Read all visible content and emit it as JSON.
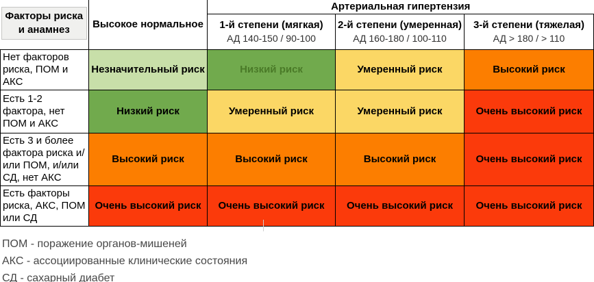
{
  "colors": {
    "light_green": "#C8DFA9",
    "green": "#71AA4D",
    "dark_green_text": "#4A7A28",
    "yellow": "#FBD765",
    "orange": "#FC7E00",
    "red": "#FB3A0B",
    "header_gray": "#F0F0EE",
    "border": "#000000"
  },
  "header": {
    "factors_label": "Факторы риска и анамнез",
    "high_normal_label": "Высокое нормальное",
    "hypertension_label": "Артериальная гипертензия",
    "degrees": [
      {
        "title": "1-й степени (мягкая)",
        "bp": "АД 140-150 / 90-100"
      },
      {
        "title": "2-й степени (умеренная)",
        "bp": "АД 160-180 / 100-110"
      },
      {
        "title": "3-й степени (тяжелая)",
        "bp": "АД > 180 / > 110"
      }
    ]
  },
  "rows": [
    {
      "factor": "Нет факторов риска, ПОМ и АКС",
      "cells": [
        {
          "label": "Незначительный риск",
          "tone": "light-green"
        },
        {
          "label": "Низкий риск",
          "tone": "green-muted"
        },
        {
          "label": "Умеренный риск",
          "tone": "yellow"
        },
        {
          "label": "Высокий риск",
          "tone": "orange"
        }
      ]
    },
    {
      "factor": "Есть 1-2 фактора, нет ПОМ и АКС",
      "cells": [
        {
          "label": "Низкий риск",
          "tone": "green"
        },
        {
          "label": "Умеренный риск",
          "tone": "yellow"
        },
        {
          "label": "Умеренный риск",
          "tone": "yellow"
        },
        {
          "label": "Очень высокий риск",
          "tone": "red"
        }
      ]
    },
    {
      "factor": "Есть 3 и более фактора риска и/или ПОМ, и/или СД, нет АКС",
      "cells": [
        {
          "label": "Высокий риск",
          "tone": "orange"
        },
        {
          "label": "Высокий риск",
          "tone": "orange"
        },
        {
          "label": "Высокий риск",
          "tone": "orange"
        },
        {
          "label": "Очень высокий риск",
          "tone": "red"
        }
      ]
    },
    {
      "factor": "Есть факторы риска,  АКС, ПОМ или СД",
      "cells": [
        {
          "label": "Очень высокий риск",
          "tone": "red"
        },
        {
          "label": "Очень высокий риск",
          "tone": "red"
        },
        {
          "label": "Очень высокий риск",
          "tone": "red"
        },
        {
          "label": "Очень высокий риск",
          "tone": "red"
        }
      ]
    }
  ],
  "legend": [
    "ПОМ - поражение органов-мишеней",
    "АКС - ассоциированные клинические состояния",
    "СД - сахарный диабет"
  ]
}
